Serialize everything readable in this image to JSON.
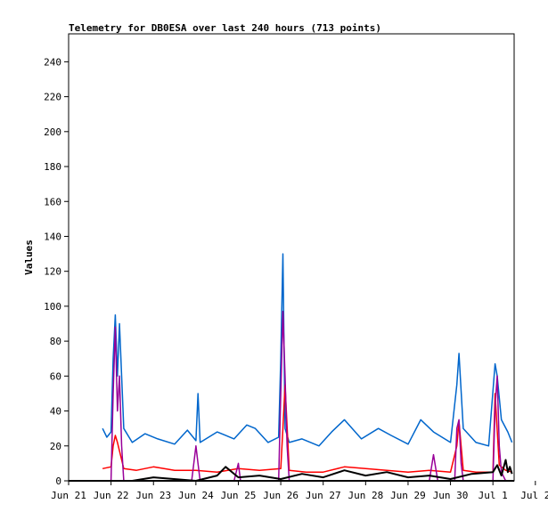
{
  "chart_data": {
    "type": "line",
    "title": "Telemetry for DB0ESA over last 240 hours (713 points)",
    "xlabel": "",
    "ylabel": "Values",
    "ylim": [
      0,
      256
    ],
    "yticks": [
      0,
      20,
      40,
      60,
      80,
      100,
      120,
      140,
      160,
      180,
      200,
      220,
      240
    ],
    "x_tick_labels": [
      "Jun 21",
      "Jun 22",
      "Jun 23",
      "Jun 24",
      "Jun 25",
      "Jun 26",
      "Jun 27",
      "Jun 28",
      "Jun 29",
      "Jun 30",
      "Jul 1",
      "Jul 2"
    ],
    "x_range_days": [
      0,
      10.5
    ],
    "legend": "none",
    "grid": false,
    "series": [
      {
        "color": "#0066cc",
        "x": [
          0.8,
          0.9,
          1.0,
          1.05,
          1.1,
          1.15,
          1.2,
          1.3,
          1.5,
          1.8,
          2.1,
          2.5,
          2.8,
          3.0,
          3.05,
          3.1,
          3.5,
          3.9,
          4.2,
          4.4,
          4.7,
          4.95,
          5.0,
          5.05,
          5.1,
          5.2,
          5.5,
          5.9,
          6.2,
          6.5,
          6.9,
          7.3,
          7.6,
          8.0,
          8.3,
          8.6,
          9.0,
          9.15,
          9.2,
          9.3,
          9.6,
          9.9,
          10.05,
          10.1,
          10.2,
          10.35,
          10.45
        ],
        "y": [
          30,
          25,
          28,
          70,
          95,
          60,
          90,
          30,
          22,
          27,
          24,
          21,
          29,
          23,
          50,
          22,
          28,
          24,
          32,
          30,
          22,
          25,
          70,
          130,
          30,
          22,
          24,
          20,
          28,
          35,
          24,
          30,
          26,
          21,
          35,
          28,
          22,
          55,
          73,
          30,
          22,
          20,
          67,
          60,
          35,
          28,
          22
        ]
      },
      {
        "color": "#ff0000",
        "x": [
          0.8,
          1.0,
          1.05,
          1.1,
          1.15,
          1.3,
          1.6,
          2.0,
          2.5,
          3.0,
          3.5,
          4.0,
          4.5,
          5.0,
          5.05,
          5.1,
          5.2,
          5.6,
          6.0,
          6.5,
          7.0,
          7.5,
          8.0,
          8.5,
          9.0,
          9.15,
          9.2,
          9.3,
          9.6,
          10.0,
          10.05,
          10.15,
          10.3,
          10.45
        ],
        "y": [
          7,
          8,
          20,
          26,
          22,
          7,
          6,
          8,
          6,
          6,
          5,
          7,
          6,
          7,
          30,
          55,
          6,
          5,
          5,
          8,
          7,
          6,
          5,
          6,
          5,
          20,
          34,
          6,
          5,
          5,
          50,
          9,
          6,
          5
        ]
      },
      {
        "color": "#990099",
        "x": [
          0.8,
          1.0,
          1.05,
          1.1,
          1.15,
          1.2,
          1.25,
          1.3,
          2.0,
          2.9,
          3.0,
          3.05,
          3.1,
          3.9,
          4.0,
          4.05,
          4.1,
          4.95,
          5.0,
          5.05,
          5.1,
          5.15,
          5.2,
          6.0,
          7.0,
          7.5,
          8.5,
          8.6,
          8.7,
          9.1,
          9.15,
          9.2,
          9.25,
          9.3,
          10.0,
          10.05,
          10.1,
          10.15,
          10.2,
          10.3,
          10.45
        ],
        "y": [
          0,
          0,
          50,
          88,
          40,
          60,
          20,
          0,
          0,
          0,
          20,
          10,
          0,
          0,
          10,
          0,
          0,
          0,
          50,
          97,
          60,
          20,
          0,
          0,
          0,
          0,
          0,
          15,
          0,
          0,
          30,
          35,
          10,
          0,
          0,
          42,
          60,
          20,
          5,
          0,
          0
        ]
      },
      {
        "color": "#000000",
        "x": [
          0.8,
          1.5,
          2.0,
          3.0,
          3.5,
          3.7,
          4.0,
          4.5,
          5.0,
          5.5,
          6.0,
          6.5,
          7.0,
          7.5,
          8.0,
          8.5,
          9.0,
          9.5,
          10.0,
          10.1,
          10.2,
          10.3,
          10.35,
          10.4,
          10.45
        ],
        "y": [
          0,
          0,
          2,
          0,
          3,
          8,
          2,
          3,
          1,
          4,
          2,
          6,
          3,
          5,
          2,
          3,
          1,
          4,
          5,
          9,
          3,
          12,
          5,
          8,
          4
        ]
      }
    ]
  }
}
